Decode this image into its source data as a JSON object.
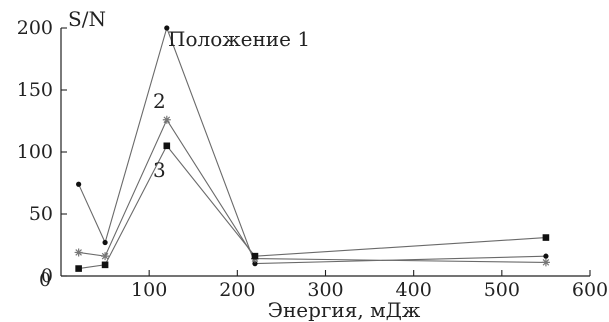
{
  "chart_data": {
    "type": "line",
    "xlabel": "Энергия, мДж",
    "ylabel": "S/N",
    "xlim": [
      0,
      600
    ],
    "ylim": [
      0,
      200
    ],
    "xticks": [
      100,
      200,
      300,
      400,
      500,
      600
    ],
    "yticks": [
      0,
      50,
      100,
      150,
      200
    ],
    "xtick_labels": [
      "100",
      "200",
      "300",
      "400",
      "500",
      "600"
    ],
    "ytick_labels": [
      "0",
      "50",
      "100",
      "150",
      "200"
    ],
    "grid": false,
    "series": [
      {
        "name": "Положение 1",
        "marker": "circle",
        "x": [
          20,
          50,
          120,
          220,
          550
        ],
        "y": [
          74,
          27,
          200,
          10,
          16
        ]
      },
      {
        "name": "2",
        "marker": "star",
        "x": [
          20,
          50,
          120,
          220,
          550
        ],
        "y": [
          19,
          16,
          126,
          14,
          11
        ]
      },
      {
        "name": "3",
        "marker": "square",
        "x": [
          20,
          50,
          120,
          220,
          550
        ],
        "y": [
          6,
          9,
          105,
          16,
          31
        ]
      }
    ]
  }
}
